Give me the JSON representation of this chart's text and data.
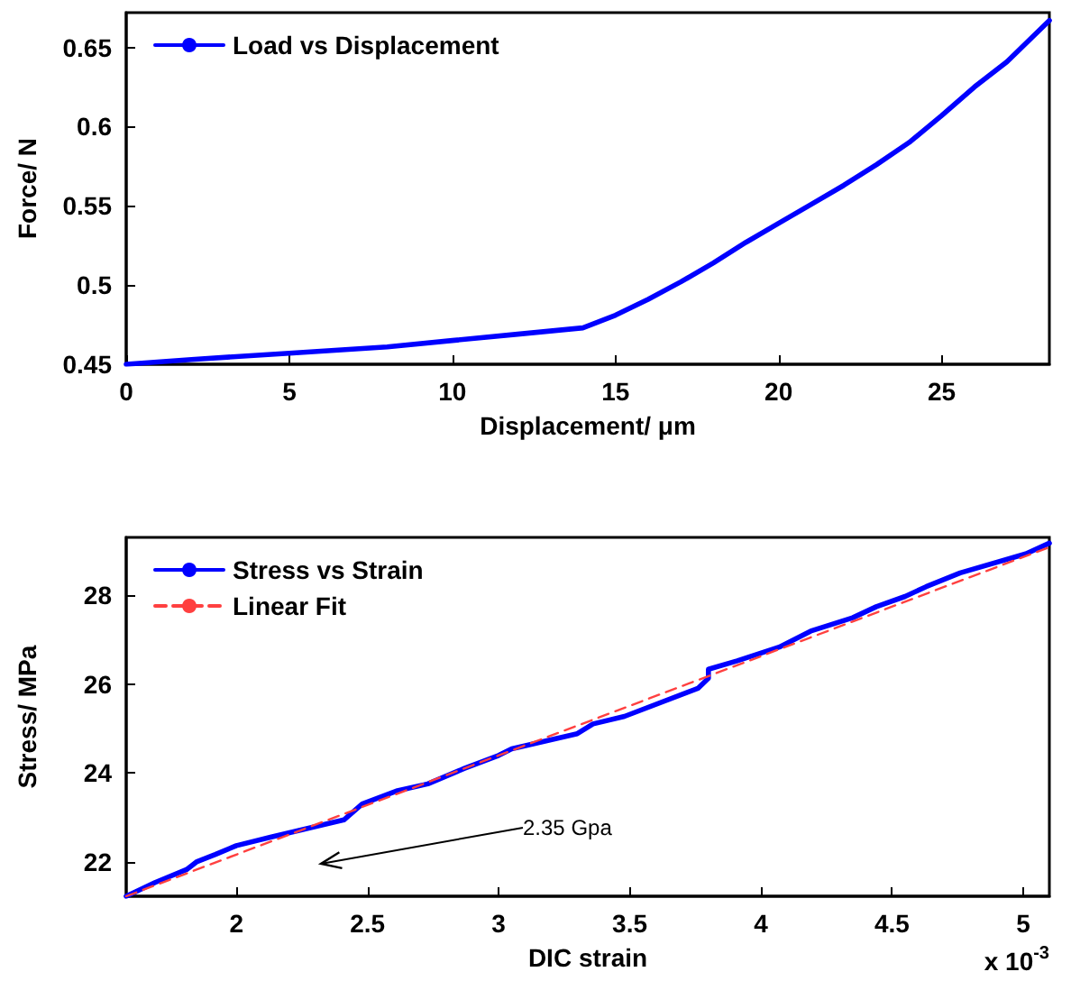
{
  "chart_data": [
    {
      "type": "line",
      "xlabel": "Displacement/ μm",
      "ylabel": "Force/ N",
      "xlim": [
        0,
        28.3
      ],
      "ylim": [
        0.45,
        0.672
      ],
      "xticks": [
        0,
        5,
        10,
        15,
        20,
        25
      ],
      "yticks": [
        0.45,
        0.5,
        0.55,
        0.6,
        0.65
      ],
      "legend": "top left",
      "grid": false,
      "series": [
        {
          "name": "Load vs Displacement",
          "color": "#0000ff",
          "line_style": "solid",
          "x": [
            0,
            2,
            5,
            8,
            10,
            12,
            14,
            15,
            16,
            17,
            18,
            19,
            20,
            21,
            22,
            23,
            24,
            25,
            26,
            27,
            28.3
          ],
          "values": [
            0.45,
            0.453,
            0.457,
            0.461,
            0.465,
            0.469,
            0.473,
            0.481,
            0.491,
            0.502,
            0.514,
            0.527,
            0.539,
            0.551,
            0.563,
            0.576,
            0.59,
            0.607,
            0.625,
            0.641,
            0.667
          ]
        }
      ]
    },
    {
      "type": "line",
      "xlabel": "DIC strain",
      "ylabel": "Stress/ MPa",
      "xlim": [
        1.58,
        5.1
      ],
      "ylim": [
        21.22,
        29.3
      ],
      "xticks": [
        2,
        2.5,
        3,
        3.5,
        4,
        4.5,
        5
      ],
      "yticks": [
        22,
        24,
        26,
        28
      ],
      "legend": "top left",
      "grid": false,
      "annotations": [
        "2.35 Gpa",
        "x 10$^{-3}$"
      ],
      "series": [
        {
          "name": "Stress vs Strain",
          "color": "#0000ff",
          "line_style": "solid",
          "x": [
            1.58,
            1.69,
            1.81,
            1.85,
            1.92,
            2.0,
            2.13,
            2.41,
            2.48,
            2.61,
            2.73,
            2.87,
            3.0,
            3.05,
            3.3,
            3.36,
            3.48,
            3.76,
            3.8,
            3.8,
            3.91,
            4.07,
            4.19,
            4.35,
            4.44,
            4.55,
            4.63,
            4.76,
            5.01,
            5.1
          ],
          "values": [
            21.22,
            21.53,
            21.82,
            22.0,
            22.16,
            22.36,
            22.55,
            22.94,
            23.3,
            23.59,
            23.75,
            24.1,
            24.39,
            24.54,
            24.88,
            25.1,
            25.27,
            25.9,
            26.13,
            26.33,
            26.52,
            26.83,
            27.19,
            27.49,
            27.74,
            27.97,
            28.19,
            28.5,
            28.93,
            29.17
          ]
        },
        {
          "name": "Linear Fit",
          "color": "#ff4040",
          "line_style": "dashed",
          "x": [
            1.58,
            5.1
          ],
          "values": [
            21.22,
            29.08
          ]
        }
      ]
    }
  ]
}
